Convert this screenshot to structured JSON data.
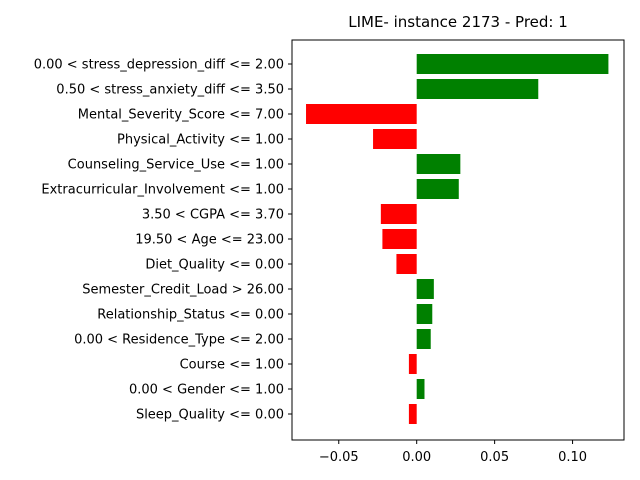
{
  "chart_data": {
    "type": "bar",
    "orientation": "horizontal",
    "title": "LIME- instance 2173 - Pred: 1",
    "xlabel": "",
    "ylabel": "",
    "xlim": [
      -0.08,
      0.133
    ],
    "xticks": [
      -0.05,
      0.0,
      0.05,
      0.1
    ],
    "xtick_labels": [
      "−0.05",
      "0.00",
      "0.05",
      "0.10"
    ],
    "grid": false,
    "colors": {
      "positive": "#008000",
      "negative": "#ff0000"
    },
    "categories": [
      "0.00 < stress_depression_diff <= 2.00",
      "0.50 < stress_anxiety_diff <= 3.50",
      "Mental_Severity_Score <= 7.00",
      "Physical_Activity <= 1.00",
      "Counseling_Service_Use <= 1.00",
      "Extracurricular_Involvement <= 1.00",
      "3.50 < CGPA <= 3.70",
      "19.50 < Age <= 23.00",
      "Diet_Quality <= 0.00",
      "Semester_Credit_Load > 26.00",
      "Relationship_Status <= 0.00",
      "0.00 < Residence_Type <= 2.00",
      "Course <= 1.00",
      "0.00 < Gender <= 1.00",
      "Sleep_Quality <= 0.00"
    ],
    "values": [
      0.123,
      0.078,
      -0.071,
      -0.028,
      0.028,
      0.027,
      -0.023,
      -0.022,
      -0.013,
      0.011,
      0.01,
      0.009,
      -0.005,
      0.005,
      -0.005
    ]
  }
}
